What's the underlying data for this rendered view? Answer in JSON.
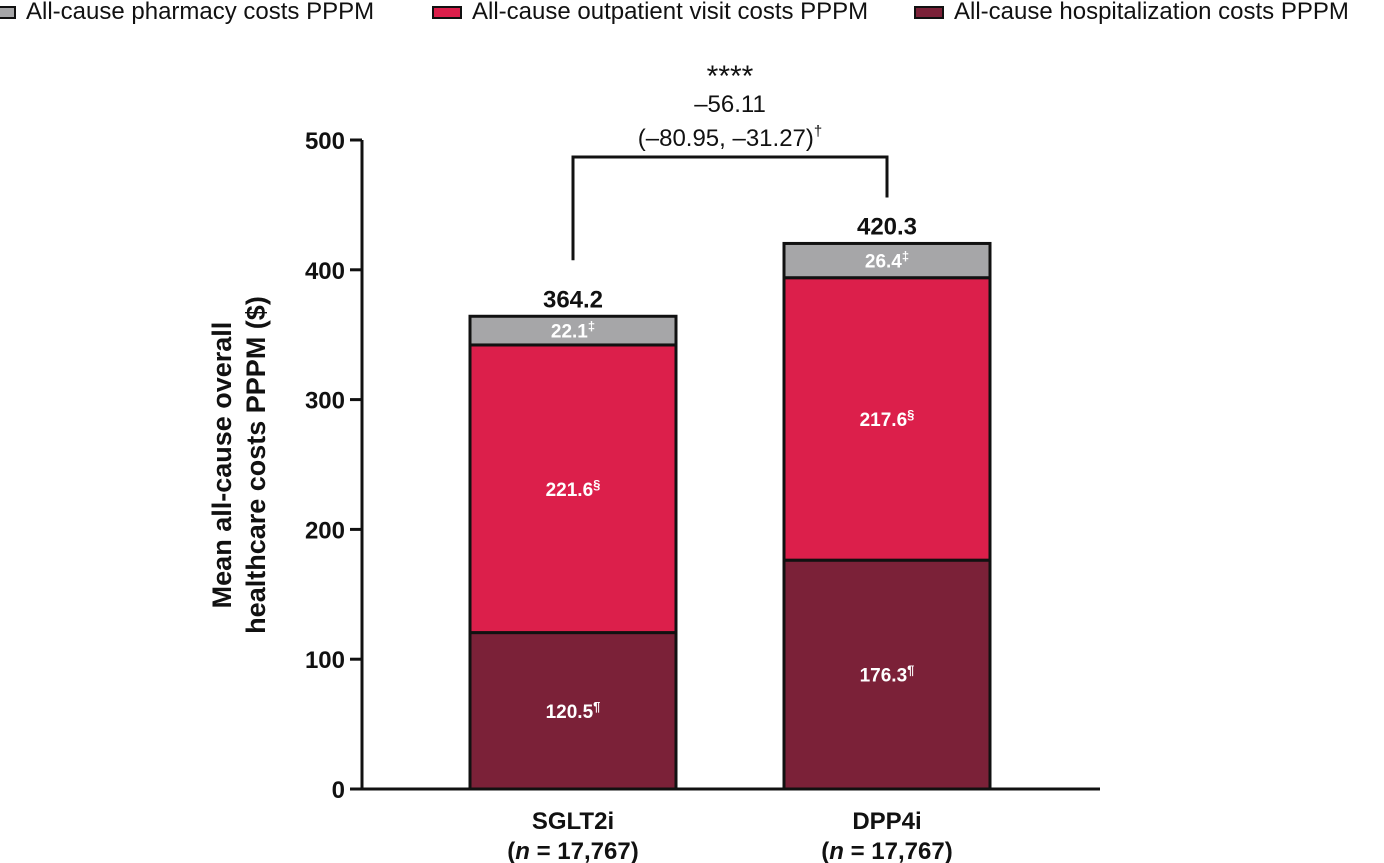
{
  "legend": {
    "items": [
      {
        "label": "All-cause pharmacy costs PPPM",
        "color": "#a6a6a8"
      },
      {
        "label": "All-cause outpatient visit costs PPPM",
        "color": "#dc1f4b"
      },
      {
        "label": "All-cause hospitalization costs PPPM",
        "color": "#7b2138"
      }
    ]
  },
  "chart_data": {
    "type": "bar",
    "stacked": true,
    "categories": [
      "SGLT2i",
      "DPP4i"
    ],
    "category_sublabels": [
      "(n = 17,767)",
      "(n = 17,767)"
    ],
    "series": [
      {
        "name": "All-cause hospitalization costs PPPM",
        "values": [
          120.5,
          176.3
        ],
        "labels": [
          "120.5¶",
          "176.3¶"
        ],
        "color": "#7b2138"
      },
      {
        "name": "All-cause outpatient visit costs PPPM",
        "values": [
          221.6,
          217.6
        ],
        "labels": [
          "221.6§",
          "217.6§"
        ],
        "color": "#dc1f4b"
      },
      {
        "name": "All-cause pharmacy costs PPPM",
        "values": [
          22.1,
          26.4
        ],
        "labels": [
          "22.1‡",
          "26.4‡"
        ],
        "color": "#a6a6a8"
      }
    ],
    "totals": [
      "364.2",
      "420.3"
    ],
    "ylabel_lines": [
      "Mean all-cause overall",
      "healthcare costs PPPM ($)"
    ],
    "ylim": [
      0,
      500
    ],
    "yticks": [
      0,
      100,
      200,
      300,
      400,
      500
    ],
    "comparison": {
      "stars": "****",
      "difference": "–56.11",
      "ci": "(–80.95, –31.27)",
      "ci_mark": "†"
    },
    "legend_position": "top",
    "grid": false
  }
}
